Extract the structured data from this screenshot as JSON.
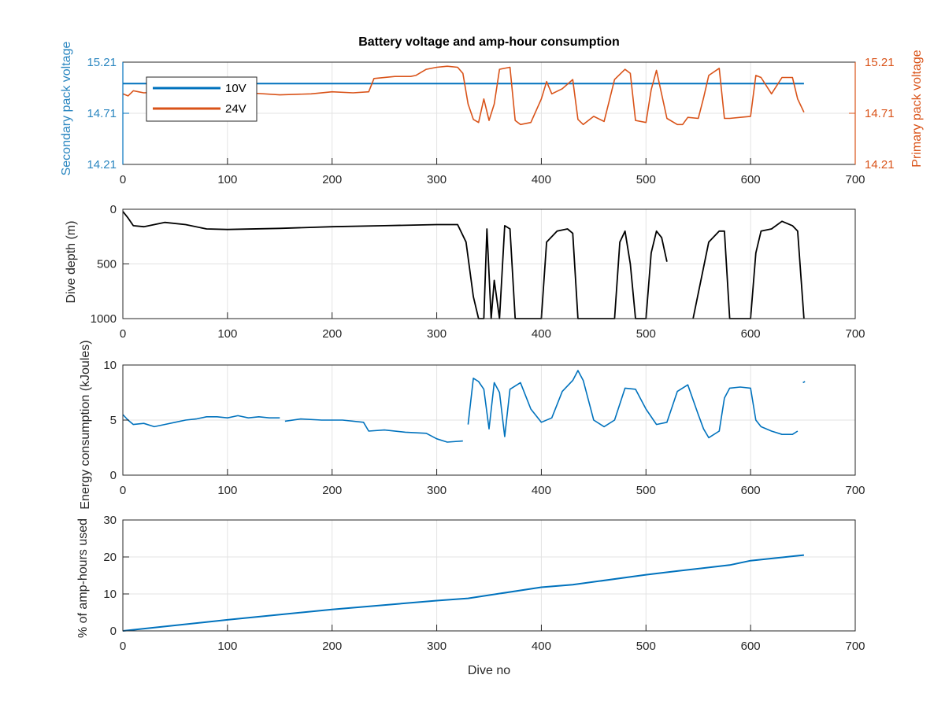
{
  "colors": {
    "blue": "#0072bd",
    "orange": "#d95319",
    "black": "#000000",
    "grid": "#e3e3e3",
    "axis": "#262626"
  },
  "chart_data": [
    {
      "type": "line",
      "title": "Battery voltage and amp-hour consumption",
      "xlabel": "",
      "ylabel_left": "Secondary pack voltage",
      "ylabel_right": "Primary pack voltage",
      "xlim": [
        0,
        700
      ],
      "ylim": [
        14.21,
        15.21
      ],
      "xticks": [
        "0",
        "100",
        "200",
        "300",
        "400",
        "500",
        "600",
        "700"
      ],
      "yticks_left": [
        "14.21",
        "14.71",
        "15.21"
      ],
      "yticks_right": [
        "14.21",
        "14.71",
        "15.21"
      ],
      "grid": true,
      "legend": {
        "placement": "top-left",
        "entries": [
          "10V",
          "24V"
        ]
      },
      "series": [
        {
          "name": "10V",
          "axis": "left",
          "x": [
            0,
            651
          ],
          "y": [
            15.0,
            15.0
          ]
        },
        {
          "name": "24V",
          "axis": "right",
          "x": [
            0,
            5,
            10,
            15,
            20,
            40,
            60,
            80,
            100,
            120,
            150,
            180,
            200,
            220,
            235,
            240,
            260,
            275,
            280,
            290,
            300,
            310,
            320,
            325,
            330,
            335,
            340,
            345,
            350,
            355,
            360,
            370,
            375,
            380,
            390,
            400,
            405,
            410,
            420,
            430,
            435,
            440,
            450,
            460,
            470,
            480,
            485,
            490,
            500,
            505,
            510,
            520,
            530,
            535,
            540,
            550,
            555,
            560,
            570,
            575,
            580,
            590,
            600,
            605,
            610,
            620,
            630,
            640,
            645,
            651
          ],
          "y": [
            14.9,
            14.88,
            14.93,
            14.92,
            14.91,
            14.92,
            14.9,
            14.92,
            14.9,
            14.91,
            14.89,
            14.9,
            14.92,
            14.91,
            14.92,
            15.05,
            15.07,
            15.07,
            15.08,
            15.14,
            15.16,
            15.17,
            15.16,
            15.1,
            14.8,
            14.65,
            14.62,
            14.85,
            14.64,
            14.8,
            15.14,
            15.16,
            14.64,
            14.6,
            14.62,
            14.85,
            15.02,
            14.9,
            14.95,
            15.04,
            14.65,
            14.6,
            14.68,
            14.63,
            15.04,
            15.14,
            15.1,
            14.64,
            14.62,
            14.94,
            15.13,
            14.66,
            14.6,
            14.6,
            14.67,
            14.66,
            14.86,
            15.08,
            15.15,
            14.66,
            14.66,
            14.67,
            14.68,
            15.08,
            15.06,
            14.9,
            15.06,
            15.06,
            14.85,
            14.72
          ]
        }
      ]
    },
    {
      "type": "line",
      "title": "",
      "xlabel": "",
      "ylabel": "Dive depth (m)",
      "xlim": [
        0,
        700
      ],
      "ylim": [
        0,
        1000
      ],
      "yreversed": true,
      "xticks": [
        "0",
        "100",
        "200",
        "300",
        "400",
        "500",
        "600",
        "700"
      ],
      "yticks": [
        "0",
        "500",
        "1000"
      ],
      "grid": true,
      "series": [
        {
          "name": "",
          "x": [
            0,
            5,
            10,
            20,
            40,
            60,
            80,
            100,
            150,
            200,
            250,
            300,
            320,
            328,
            335,
            340,
            345,
            348,
            352,
            355,
            360,
            365,
            370,
            375,
            380,
            395,
            400,
            405,
            415,
            425,
            430,
            435,
            445,
            460,
            470,
            475,
            480,
            485,
            490,
            500,
            505,
            510,
            515,
            520
          ],
          "y": [
            20,
            80,
            150,
            160,
            120,
            140,
            180,
            185,
            175,
            160,
            150,
            140,
            140,
            300,
            800,
            1000,
            1000,
            180,
            1000,
            650,
            1000,
            150,
            180,
            1000,
            1000,
            1000,
            1000,
            300,
            200,
            180,
            220,
            1000,
            1000,
            1000,
            1000,
            300,
            200,
            500,
            1000,
            1000,
            400,
            200,
            260,
            480
          ]
        },
        {
          "name": "",
          "x": [
            545,
            560,
            570,
            575,
            580,
            590,
            600,
            605,
            610,
            620,
            630,
            640,
            645,
            651
          ],
          "y": [
            1000,
            300,
            200,
            200,
            1000,
            1000,
            1000,
            400,
            200,
            180,
            110,
            150,
            200,
            1000
          ]
        }
      ]
    },
    {
      "type": "line",
      "title": "",
      "xlabel": "",
      "ylabel": "Energy consumption (kJoules)",
      "xlim": [
        0,
        700
      ],
      "ylim": [
        0,
        10
      ],
      "xticks": [
        "0",
        "100",
        "200",
        "300",
        "400",
        "500",
        "600",
        "700"
      ],
      "yticks": [
        "0",
        "5",
        "10"
      ],
      "grid": true,
      "series": [
        {
          "name": "",
          "x": [
            0,
            5,
            10,
            20,
            30,
            40,
            50,
            60,
            70,
            80,
            90,
            100,
            110,
            120,
            130,
            140,
            150
          ],
          "y": [
            5.5,
            5.0,
            4.6,
            4.7,
            4.4,
            4.6,
            4.8,
            5.0,
            5.1,
            5.3,
            5.3,
            5.2,
            5.4,
            5.2,
            5.3,
            5.2,
            5.2
          ]
        },
        {
          "name": "",
          "x": [
            155,
            170,
            190,
            210,
            230,
            235,
            250,
            270,
            290,
            300,
            310,
            325
          ],
          "y": [
            4.9,
            5.1,
            5.0,
            5.0,
            4.8,
            4.0,
            4.1,
            3.9,
            3.8,
            3.3,
            3.0,
            3.1
          ]
        },
        {
          "name": "",
          "x": [
            330,
            335,
            340,
            345,
            350,
            355,
            360,
            365,
            370,
            380,
            390,
            400,
            410,
            420,
            430,
            435,
            440,
            450,
            460,
            470,
            480,
            490,
            500,
            510,
            520,
            530,
            540,
            550,
            555,
            560,
            570,
            575,
            580,
            590,
            600,
            605,
            610,
            620,
            630,
            640,
            645
          ],
          "y": [
            4.6,
            8.8,
            8.5,
            7.8,
            4.2,
            8.4,
            7.5,
            3.5,
            7.8,
            8.4,
            6.0,
            4.8,
            5.2,
            7.6,
            8.6,
            9.5,
            8.6,
            5.0,
            4.4,
            5.0,
            7.9,
            7.8,
            6.0,
            4.6,
            4.8,
            7.6,
            8.2,
            5.5,
            4.2,
            3.4,
            4.0,
            7.0,
            7.9,
            8.0,
            7.9,
            5.0,
            4.4,
            4.0,
            3.7,
            3.7,
            4.0
          ]
        },
        {
          "name": "",
          "x": [
            650,
            652
          ],
          "y": [
            8.4,
            8.5
          ]
        }
      ]
    },
    {
      "type": "line",
      "title": "",
      "xlabel": "Dive no",
      "ylabel": "% of amp-hours used",
      "xlim": [
        0,
        700
      ],
      "ylim": [
        0,
        30
      ],
      "xticks": [
        "0",
        "100",
        "200",
        "300",
        "400",
        "500",
        "600",
        "700"
      ],
      "yticks": [
        "0",
        "10",
        "20",
        "30"
      ],
      "grid": true,
      "series": [
        {
          "name": "",
          "x": [
            0,
            100,
            200,
            300,
            330,
            400,
            430,
            500,
            530,
            580,
            600,
            651
          ],
          "y": [
            0,
            3.0,
            5.8,
            8.2,
            8.8,
            11.8,
            12.5,
            15.2,
            16.2,
            17.8,
            19.0,
            20.5
          ]
        }
      ]
    }
  ]
}
